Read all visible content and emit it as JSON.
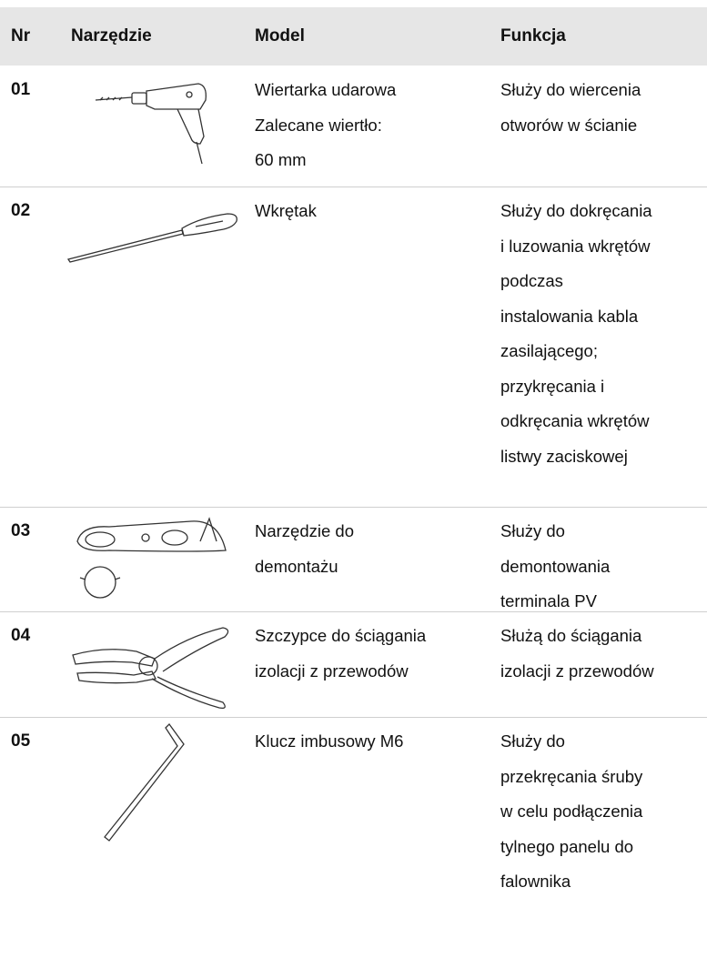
{
  "table": {
    "header": [
      "Nr",
      "Narzędzie",
      "Model",
      "Funkcja"
    ],
    "rows": [
      {
        "nr": "01",
        "model": [
          "Wiertarka udarowa",
          "Zalecane wiertło:",
          "60 mm"
        ],
        "function": [
          "Służy do wiercenia",
          "otworów w ścianie"
        ]
      },
      {
        "nr": "02",
        "model": [
          "Wkrętak"
        ],
        "function": [
          "Służy do dokręcania",
          "i luzowania wkrętów",
          "podczas",
          "instalowania kabla",
          "zasilającego;",
          "przykręcania i",
          "odkręcania wkrętów",
          "listwy zaciskowej"
        ]
      },
      {
        "nr": "03",
        "model": [
          "Narzędzie do",
          "demontażu"
        ],
        "function": [
          "Służy do",
          "demontowania",
          "terminala PV"
        ]
      },
      {
        "nr": "04",
        "model": [
          "Szczypce do ściągania",
          "izolacji z przewodów"
        ],
        "function": [
          "Służą do ściągania",
          "izolacji z przewodów"
        ]
      },
      {
        "nr": "05",
        "model": [
          "Klucz imbusowy M6"
        ],
        "function": [
          "Służy do",
          "przekręcania śruby",
          "w celu podłączenia",
          "tylnego panelu do",
          "falownika"
        ]
      }
    ]
  }
}
